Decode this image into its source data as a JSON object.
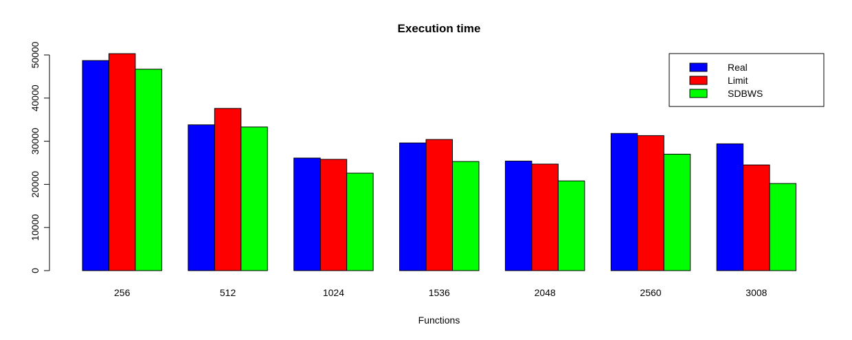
{
  "chart_data": {
    "type": "bar",
    "title": "Execution time",
    "xlabel": "Functions",
    "ylabel": "",
    "categories": [
      "256",
      "512",
      "1024",
      "1536",
      "2048",
      "2560",
      "3008"
    ],
    "series": [
      {
        "name": "Real",
        "color": "#0000FF",
        "values": [
          48700,
          33800,
          26100,
          29600,
          25400,
          31800,
          29400
        ]
      },
      {
        "name": "Limit",
        "color": "#FF0000",
        "values": [
          50300,
          37600,
          25800,
          30400,
          24700,
          31300,
          24500
        ]
      },
      {
        "name": "SDBWS",
        "color": "#00FF00",
        "values": [
          46700,
          33300,
          22600,
          25300,
          20800,
          27000,
          20200
        ]
      }
    ],
    "ylim": [
      0,
      50000
    ],
    "yticks": [
      0,
      10000,
      20000,
      30000,
      40000,
      50000
    ],
    "grid": false,
    "legend_position": "top-right"
  }
}
